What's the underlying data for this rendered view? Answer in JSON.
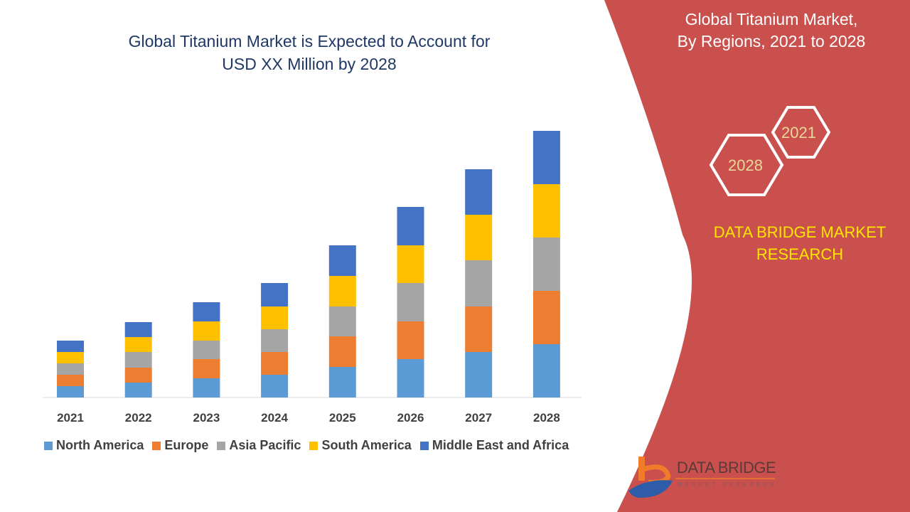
{
  "title_line1": "Global Titanium Market is Expected to Account for",
  "title_line2": "USD XX Million by 2028",
  "side_panel": {
    "title_line1": "Global Titanium Market,",
    "title_line2": "By Regions, 2021 to 2028",
    "hex_labels": [
      "2021",
      "2028"
    ],
    "brand_line1": "DATA BRIDGE MARKET",
    "brand_line2": "RESEARCH",
    "logo_text": "DATA BRIDGE",
    "logo_subtext": "MARKET RESEARCH",
    "panel_color": "#C9504C",
    "brand_color": "#FFE600"
  },
  "chart_data": {
    "type": "bar",
    "stacked": true,
    "title": "Global Titanium Market is Expected to Account for USD XX Million by 2028",
    "xlabel": "",
    "ylabel": "",
    "y_axis_shown": false,
    "grid": false,
    "legend_position": "bottom",
    "categories": [
      "2021",
      "2022",
      "2023",
      "2024",
      "2025",
      "2026",
      "2027",
      "2028"
    ],
    "series": [
      {
        "name": "North America",
        "color": "#5B9BD5",
        "values": [
          16,
          21,
          27,
          32,
          43,
          54,
          64,
          75
        ]
      },
      {
        "name": "Europe",
        "color": "#ED7D31",
        "values": [
          16,
          21,
          27,
          32,
          43,
          53,
          64,
          75
        ]
      },
      {
        "name": "Asia Pacific",
        "color": "#A5A5A5",
        "values": [
          16,
          22,
          26,
          32,
          42,
          54,
          65,
          75
        ]
      },
      {
        "name": "South America",
        "color": "#FFC000",
        "values": [
          16,
          21,
          27,
          32,
          43,
          53,
          64,
          75
        ]
      },
      {
        "name": "Middle East and Africa",
        "color": "#4472C4",
        "values": [
          16,
          21,
          27,
          33,
          43,
          54,
          64,
          75
        ]
      }
    ]
  }
}
